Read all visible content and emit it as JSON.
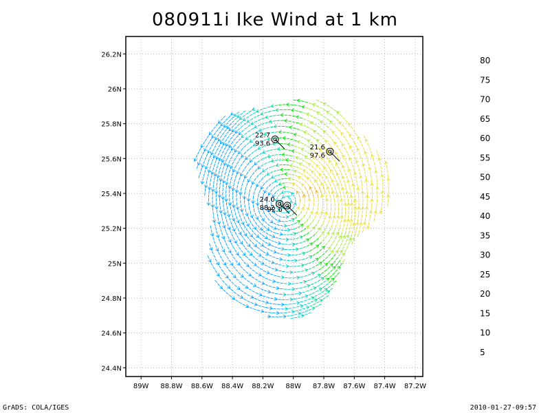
{
  "title": "080911i Ike Wind at 1 km",
  "footer": {
    "left": "GrADS: COLA/IGES",
    "right": "2010-01-27-09:57"
  },
  "chart_data": {
    "type": "heatmap",
    "title": "080911i Ike Wind at 1 km",
    "xlabel": "",
    "ylabel": "",
    "x_ticks": [
      "89W",
      "88.8W",
      "88.6W",
      "88.4W",
      "88.2W",
      "88W",
      "87.8W",
      "87.6W",
      "87.4W",
      "87.2W"
    ],
    "x_tick_values": [
      -89.0,
      -88.8,
      -88.6,
      -88.4,
      -88.2,
      -88.0,
      -87.8,
      -87.6,
      -87.4,
      -87.2
    ],
    "y_ticks": [
      "24.4N",
      "24.6N",
      "24.8N",
      "25N",
      "25.2N",
      "25.4N",
      "25.6N",
      "25.8N",
      "26N",
      "26.2N"
    ],
    "y_tick_values": [
      24.4,
      24.6,
      24.8,
      25.0,
      25.2,
      25.4,
      25.6,
      25.8,
      26.0,
      26.2
    ],
    "xlim": [
      -89.1,
      -87.15
    ],
    "ylim": [
      24.35,
      26.3
    ],
    "grid": true,
    "storm_center": {
      "lon": -88.05,
      "lat": 25.35
    },
    "field_extent_deg": 0.7,
    "colorbar": {
      "levels": [
        "5",
        "10",
        "15",
        "20",
        "25",
        "30",
        "35",
        "40",
        "45",
        "50",
        "55",
        "60",
        "65",
        "70",
        "75",
        "80"
      ],
      "colors": [
        "#a000c8",
        "#a000c8",
        "#1e3cff",
        "#00a0ff",
        "#00c8c8",
        "#00d28c",
        "#00dc00",
        "#a0e632",
        "#e6dc32",
        "#e6af2d",
        "#f08228",
        "#fa3c3c",
        "#f00082",
        "#a000c8",
        "#00c8c8",
        "#a0e632",
        "#aaaaaa"
      ]
    },
    "speed_color_ranges": [
      {
        "min": 20,
        "max": 25,
        "color": "#00a0ff"
      },
      {
        "min": 25,
        "max": 30,
        "color": "#00c8c8"
      },
      {
        "min": 30,
        "max": 35,
        "color": "#00d28c"
      },
      {
        "min": 35,
        "max": 40,
        "color": "#00dc00"
      },
      {
        "min": 40,
        "max": 45,
        "color": "#a0e632"
      },
      {
        "min": 45,
        "max": 50,
        "color": "#e6dc32"
      },
      {
        "min": 50,
        "max": 55,
        "color": "#e6af2d"
      }
    ],
    "annotations": [
      {
        "label_top": "22.7",
        "label_bottom": "93.6",
        "lon": -88.12,
        "lat": 25.71
      },
      {
        "label_top": "21.6",
        "label_bottom": "97.6",
        "lon": -87.76,
        "lat": 25.64
      },
      {
        "label_top": "24.0",
        "label_bottom": "88.2",
        "lon": -88.09,
        "lat": 25.34
      },
      {
        "label_top": "",
        "label_bottom": "92.6",
        "lon": -88.04,
        "lat": 25.33
      }
    ]
  }
}
